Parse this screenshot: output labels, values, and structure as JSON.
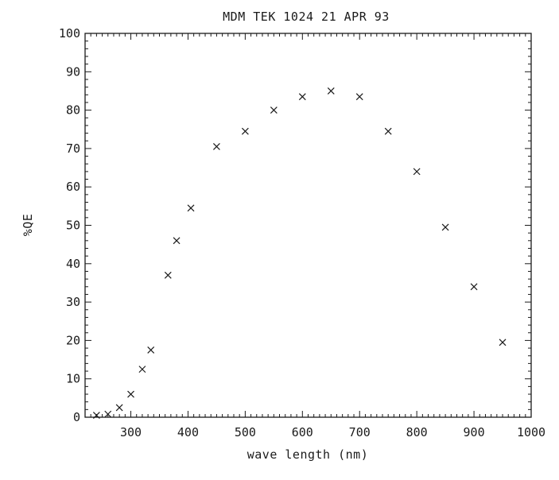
{
  "chart_data": {
    "type": "scatter",
    "title": "MDM TEK 1024 21 APR 93",
    "xlabel": "wave length (nm)",
    "ylabel": "%QE",
    "xlim": [
      220,
      1000
    ],
    "ylim": [
      0,
      100
    ],
    "x_ticks": [
      300,
      400,
      500,
      600,
      700,
      800,
      900,
      1000
    ],
    "y_ticks": [
      0,
      10,
      20,
      30,
      40,
      50,
      60,
      70,
      80,
      90,
      100
    ],
    "marker": "x",
    "grid": false,
    "legend": "none",
    "points": [
      {
        "x": 240,
        "y": 0.5
      },
      {
        "x": 260,
        "y": 0.8
      },
      {
        "x": 280,
        "y": 2.5
      },
      {
        "x": 300,
        "y": 6
      },
      {
        "x": 320,
        "y": 12.5
      },
      {
        "x": 335,
        "y": 17.5
      },
      {
        "x": 365,
        "y": 37
      },
      {
        "x": 380,
        "y": 46
      },
      {
        "x": 405,
        "y": 54.5
      },
      {
        "x": 450,
        "y": 70.5
      },
      {
        "x": 500,
        "y": 74.5
      },
      {
        "x": 550,
        "y": 80
      },
      {
        "x": 600,
        "y": 83.5
      },
      {
        "x": 650,
        "y": 85
      },
      {
        "x": 700,
        "y": 83.5
      },
      {
        "x": 750,
        "y": 74.5
      },
      {
        "x": 800,
        "y": 64
      },
      {
        "x": 850,
        "y": 49.5
      },
      {
        "x": 900,
        "y": 34
      },
      {
        "x": 950,
        "y": 19.5
      }
    ]
  },
  "colors": {
    "ink": "#1a1a1a",
    "background": "#ffffff"
  }
}
